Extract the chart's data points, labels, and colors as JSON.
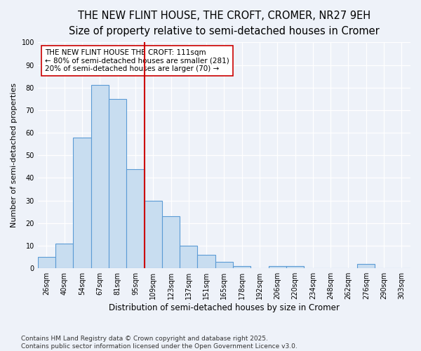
{
  "title": "THE NEW FLINT HOUSE, THE CROFT, CROMER, NR27 9EH",
  "subtitle": "Size of property relative to semi-detached houses in Cromer",
  "xlabel": "Distribution of semi-detached houses by size in Cromer",
  "ylabel": "Number of semi-detached properties",
  "categories": [
    "26sqm",
    "40sqm",
    "54sqm",
    "67sqm",
    "81sqm",
    "95sqm",
    "109sqm",
    "123sqm",
    "137sqm",
    "151sqm",
    "165sqm",
    "178sqm",
    "192sqm",
    "206sqm",
    "220sqm",
    "234sqm",
    "248sqm",
    "262sqm",
    "276sqm",
    "290sqm",
    "303sqm"
  ],
  "values": [
    5,
    11,
    58,
    81,
    75,
    44,
    30,
    23,
    10,
    6,
    3,
    1,
    0,
    1,
    1,
    0,
    0,
    0,
    2,
    0,
    0
  ],
  "bar_color": "#c8ddf0",
  "bar_edge_color": "#5b9bd5",
  "vline_x_index": 6,
  "vline_color": "#cc0000",
  "annotation_title": "THE NEW FLINT HOUSE THE CROFT: 111sqm",
  "annotation_line1": "← 80% of semi-detached houses are smaller (281)",
  "annotation_line2": "20% of semi-detached houses are larger (70) →",
  "annotation_box_color": "#ffffff",
  "annotation_box_edge": "#cc0000",
  "ylim": [
    0,
    100
  ],
  "yticks": [
    0,
    10,
    20,
    30,
    40,
    50,
    60,
    70,
    80,
    90,
    100
  ],
  "footnote1": "Contains HM Land Registry data © Crown copyright and database right 2025.",
  "footnote2": "Contains public sector information licensed under the Open Government Licence v3.0.",
  "bg_color": "#eef2f9",
  "title_fontsize": 10.5,
  "subtitle_fontsize": 9.5,
  "xlabel_fontsize": 8.5,
  "ylabel_fontsize": 8,
  "tick_fontsize": 7,
  "annotation_fontsize": 7.5,
  "footnote_fontsize": 6.5
}
